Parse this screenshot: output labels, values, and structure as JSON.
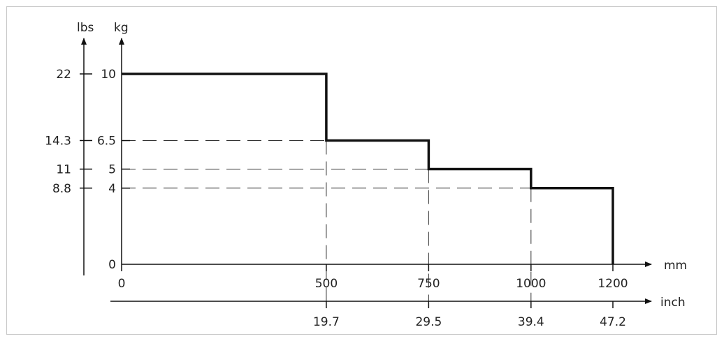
{
  "chart_data": {
    "type": "line",
    "x_axis": {
      "unit": "mm",
      "range": [
        0,
        1200
      ],
      "ticks": [
        {
          "value": 0,
          "label": "0"
        },
        {
          "value": 500,
          "label": "500"
        },
        {
          "value": 750,
          "label": "750"
        },
        {
          "value": 1000,
          "label": "1000"
        },
        {
          "value": 1200,
          "label": "1200"
        }
      ]
    },
    "x_axis_secondary": {
      "unit": "inch",
      "ticks": [
        {
          "value": 500,
          "label": "19.7"
        },
        {
          "value": 750,
          "label": "29.5"
        },
        {
          "value": 1000,
          "label": "39.4"
        },
        {
          "value": 1200,
          "label": "47.2"
        }
      ]
    },
    "y_axis": {
      "unit": "kg",
      "range": [
        0,
        10
      ],
      "ticks": [
        {
          "value": 10,
          "label": "10"
        },
        {
          "value": 6.5,
          "label": "6.5"
        },
        {
          "value": 5,
          "label": "5"
        },
        {
          "value": 4,
          "label": "4"
        },
        {
          "value": 0,
          "label": "0"
        }
      ]
    },
    "y_axis_secondary": {
      "unit": "lbs",
      "ticks": [
        {
          "value": 10,
          "label": "22"
        },
        {
          "value": 6.5,
          "label": "14.3"
        },
        {
          "value": 5,
          "label": "11"
        },
        {
          "value": 4,
          "label": "8.8"
        }
      ]
    },
    "series": [
      {
        "style": "step",
        "points": [
          {
            "x": 0,
            "y": 10
          },
          {
            "x": 500,
            "y": 10
          },
          {
            "x": 500,
            "y": 6.5
          },
          {
            "x": 750,
            "y": 6.5
          },
          {
            "x": 750,
            "y": 5
          },
          {
            "x": 1000,
            "y": 5
          },
          {
            "x": 1000,
            "y": 4
          },
          {
            "x": 1200,
            "y": 4
          },
          {
            "x": 1200,
            "y": 0
          }
        ]
      }
    ],
    "reference_lines": {
      "horizontal_at_y": [
        6.5,
        5,
        4
      ],
      "vertical_at_x": [
        500,
        750,
        1000
      ]
    },
    "grid": false,
    "legend": "none",
    "line_color": "#111111"
  }
}
